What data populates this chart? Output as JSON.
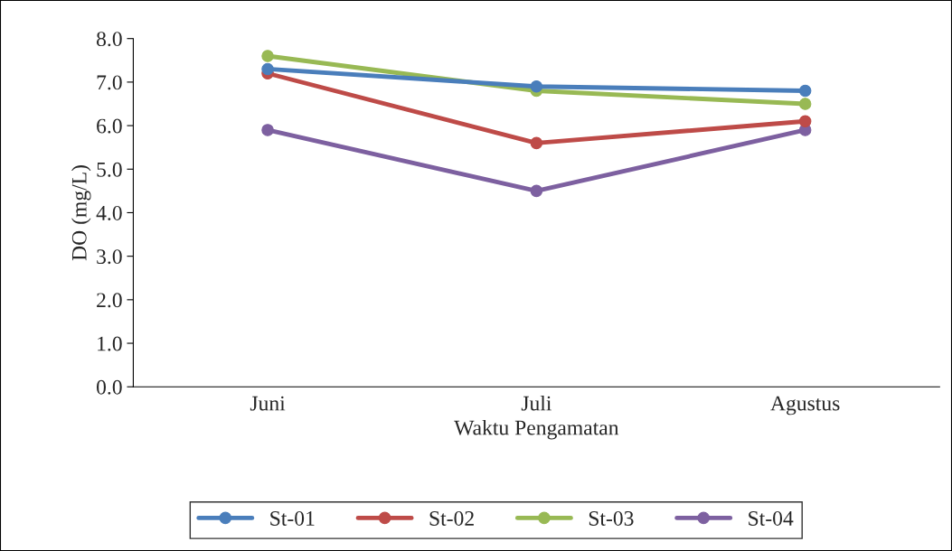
{
  "chart_data": {
    "type": "line",
    "xlabel": "Waktu Pengamatan",
    "ylabel": "DO (mg/L)",
    "categories": [
      "Juni",
      "Juli",
      "Agustus"
    ],
    "series": [
      {
        "name": "St-01",
        "color": "#4a7ebb",
        "values": [
          7.3,
          6.9,
          6.8
        ]
      },
      {
        "name": "St-02",
        "color": "#be4b48",
        "values": [
          7.2,
          5.6,
          6.1
        ]
      },
      {
        "name": "St-03",
        "color": "#98b954",
        "values": [
          7.6,
          6.8,
          6.5
        ]
      },
      {
        "name": "St-04",
        "color": "#7d60a0",
        "values": [
          5.9,
          4.5,
          5.9
        ]
      }
    ],
    "ylim": [
      0,
      8
    ],
    "yticks": [
      {
        "value": 0,
        "label": "0.0"
      },
      {
        "value": 1,
        "label": "1.0"
      },
      {
        "value": 2,
        "label": "2.0"
      },
      {
        "value": 3,
        "label": "3.0"
      },
      {
        "value": 4,
        "label": "4.0"
      },
      {
        "value": 5,
        "label": "5.0"
      },
      {
        "value": 6,
        "label": "6.0"
      },
      {
        "value": 7,
        "label": "7.0"
      },
      {
        "value": 8,
        "label": "8.0"
      }
    ],
    "grid": false,
    "legend": "bottom",
    "marker": "circle",
    "line_style": "solid"
  }
}
